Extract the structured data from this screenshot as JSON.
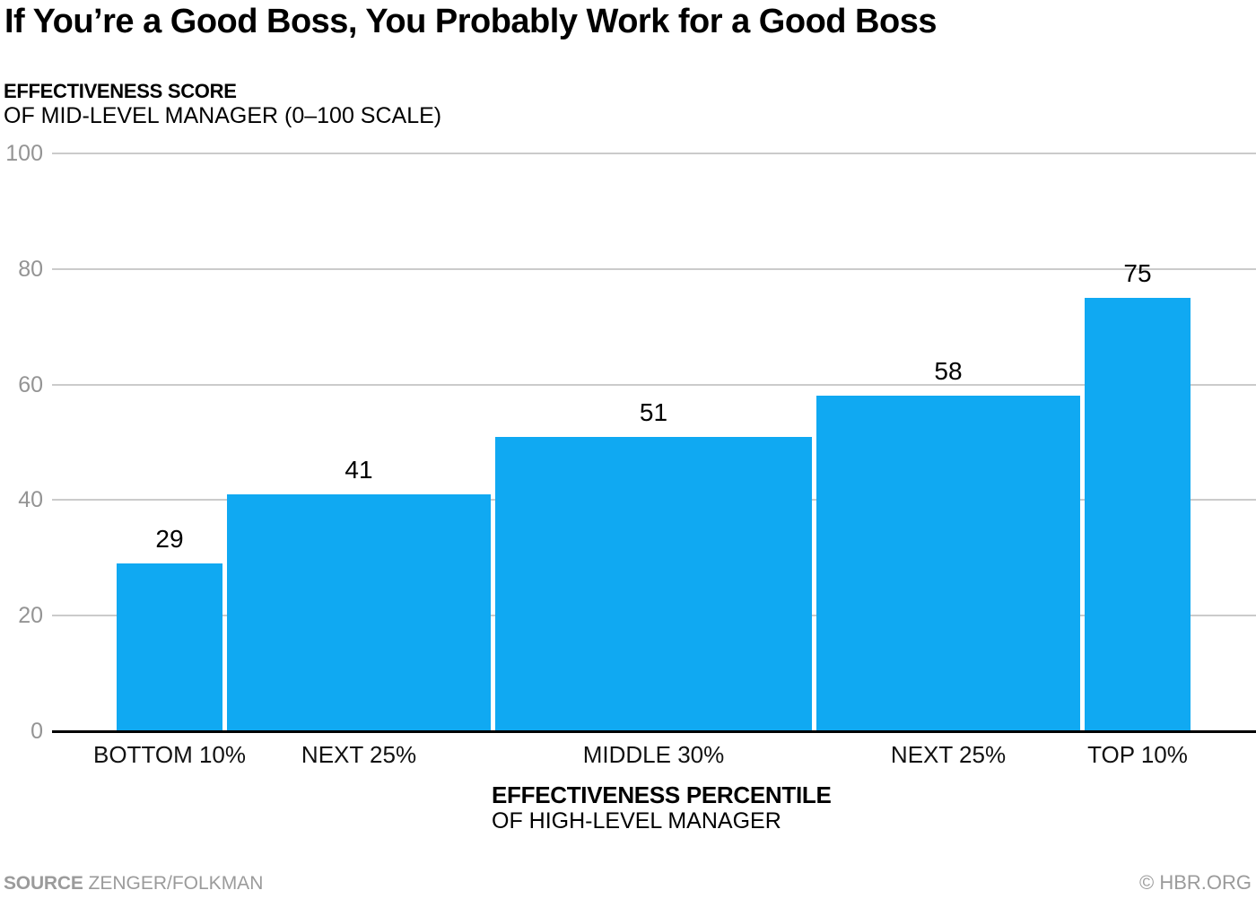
{
  "header": {
    "title": "If You’re a Good Boss, You Probably Work for a Good Boss"
  },
  "y_axis_title": {
    "line1": "EFFECTIVENESS SCORE",
    "line2": "OF MID-LEVEL MANAGER (0–100 SCALE)"
  },
  "x_axis_title": {
    "line1": "EFFECTIVENESS PERCENTILE",
    "line2": "OF HIGH-LEVEL MANAGER"
  },
  "footer": {
    "source_label": "SOURCE",
    "source_value": "ZENGER/FOLKMAN",
    "credit": "© HBR.ORG"
  },
  "colors": {
    "bar": "#10a9f2",
    "gridline": "#cbcbcb",
    "tick_label": "#949494",
    "axis_line": "#000000",
    "category_label": "#111111",
    "value_label": "#000000",
    "footer_text": "#9b9b9b"
  },
  "chart_data": {
    "type": "bar",
    "title": "If You’re a Good Boss, You Probably Work for a Good Boss",
    "categories": [
      "BOTTOM 10%",
      "NEXT 25%",
      "MIDDLE 30%",
      "NEXT 25%",
      "TOP 10%"
    ],
    "values": [
      29,
      41,
      51,
      58,
      75
    ],
    "bar_width_percentiles": [
      10,
      25,
      30,
      25,
      10
    ],
    "xlabel": "EFFECTIVENESS PERCENTILE OF HIGH-LEVEL MANAGER",
    "ylabel": "EFFECTIVENESS SCORE OF MID-LEVEL MANAGER (0–100 SCALE)",
    "ylim": [
      0,
      100
    ],
    "yticks": [
      0,
      20,
      40,
      60,
      80,
      100
    ],
    "grid": "horizontal",
    "bar_color": "#10a9f2",
    "value_labels_shown": true,
    "legend": "none"
  }
}
